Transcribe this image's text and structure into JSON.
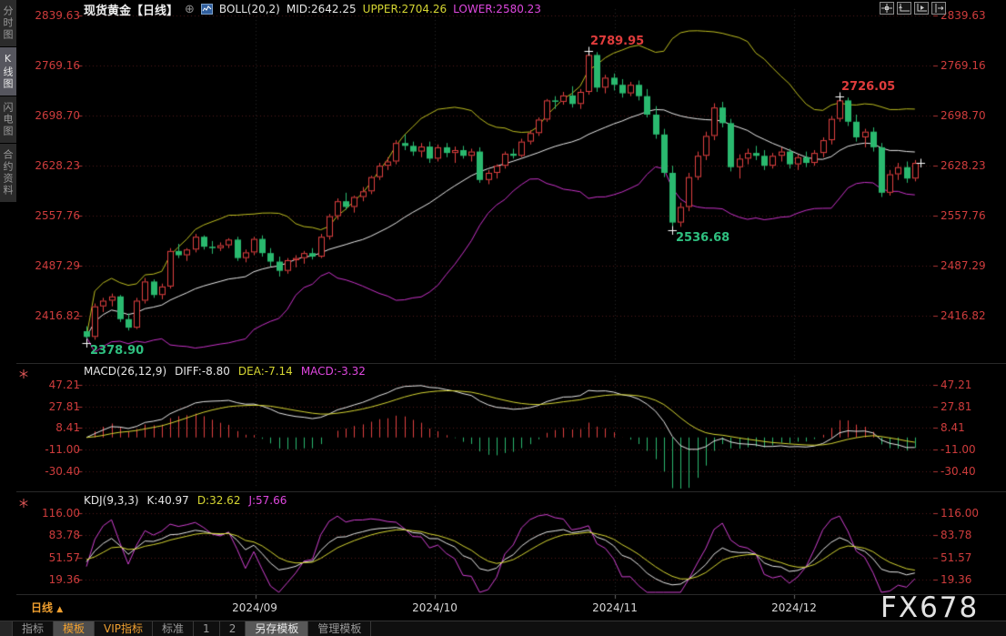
{
  "sidebar": {
    "tabs": [
      {
        "label": "分时图",
        "active": false
      },
      {
        "label": "K线图",
        "active": true
      },
      {
        "label": "闪电图",
        "active": false
      },
      {
        "label": "合约资料",
        "active": false
      }
    ]
  },
  "header": {
    "title": "现货黄金【日线】",
    "boll_label": "BOLL(20,2)",
    "mid": "MID:2642.25",
    "upper": "UPPER:2704.26",
    "lower": "LOWER:2580.23",
    "icons": [
      "crosshair-icon",
      "axis-scale-left-icon",
      "axis-scale-right-icon",
      "axis-shift-right-icon"
    ]
  },
  "macd_panel": {
    "label": "MACD(26,12,9)",
    "diff": "DIFF:-8.80",
    "dea": "DEA:-7.14",
    "macd": "MACD:-3.32"
  },
  "kdj_panel": {
    "label": "KDJ(9,3,3)",
    "k": "K:40.97",
    "d": "D:32.62",
    "j": "J:57.66"
  },
  "footer": {
    "period": "日线",
    "period_arrow": "▲"
  },
  "toolbar": {
    "items": [
      {
        "label": "指标",
        "active": false
      },
      {
        "label": "模板",
        "active": true
      },
      {
        "label": "VIP指标",
        "active": false
      },
      {
        "label": "标准",
        "active": false
      },
      {
        "label": "1",
        "active": false
      },
      {
        "label": "2",
        "active": false
      },
      {
        "label": "另存模板",
        "active": true
      },
      {
        "label": "管理模板",
        "active": false
      }
    ]
  },
  "watermark": "FX678",
  "colors": {
    "up": "#e24040",
    "down": "#2ab96f",
    "axis_label": "#cf3c3c",
    "boll_upper": "#bebe20",
    "boll_mid": "#eaeaea",
    "boll_lower": "#c832c8",
    "yellow_line": "#d6d632",
    "magenta_line": "#d040d0",
    "white_line": "#e8e8e8",
    "grid_h": "rgba(180,60,60,0.45)",
    "grid_v": "rgba(160,160,160,0.25)"
  },
  "chart_data": [
    {
      "type": "candlestick",
      "title": "现货黄金 日线 (spot gold daily)",
      "x_axis": {
        "labels": [
          "2024/09",
          "2024/10",
          "2024/11",
          "2024/12"
        ]
      },
      "y_ticks": [
        "2839.63",
        "2769.16",
        "2698.70",
        "2628.23",
        "2557.76",
        "2487.29",
        "2416.82"
      ],
      "boll": {
        "period": 20,
        "mult": 2,
        "mid": 2642.25,
        "upper": 2704.26,
        "lower": 2580.23
      },
      "annotations": [
        {
          "text": "2789.95",
          "index": 60,
          "at": "high",
          "color": "#e03c3c"
        },
        {
          "text": "2726.05",
          "index": 90,
          "at": "high",
          "color": "#e03c3c"
        },
        {
          "text": "2536.68",
          "index": 70,
          "at": "low",
          "color": "#2fc080"
        },
        {
          "text": "2378.90",
          "index": 0,
          "at": "low",
          "color": "#2fc080"
        }
      ],
      "candles": [
        [
          2395,
          2402,
          2378.9,
          2387
        ],
        [
          2387,
          2434,
          2383,
          2430
        ],
        [
          2430,
          2442,
          2422,
          2438
        ],
        [
          2438,
          2448,
          2430,
          2444
        ],
        [
          2444,
          2446,
          2408,
          2412
        ],
        [
          2412,
          2420,
          2396,
          2400
        ],
        [
          2400,
          2442,
          2398,
          2438
        ],
        [
          2438,
          2470,
          2434,
          2465
        ],
        [
          2465,
          2468,
          2442,
          2446
        ],
        [
          2446,
          2462,
          2440,
          2458
        ],
        [
          2458,
          2512,
          2455,
          2508
        ],
        [
          2508,
          2518,
          2498,
          2502
        ],
        [
          2502,
          2512,
          2494,
          2510
        ],
        [
          2510,
          2532,
          2506,
          2528
        ],
        [
          2528,
          2530,
          2510,
          2514
        ],
        [
          2514,
          2522,
          2504,
          2512
        ],
        [
          2512,
          2520,
          2508,
          2516
        ],
        [
          2516,
          2526,
          2512,
          2524
        ],
        [
          2524,
          2528,
          2494,
          2498
        ],
        [
          2498,
          2510,
          2492,
          2506
        ],
        [
          2506,
          2528,
          2502,
          2525
        ],
        [
          2525,
          2530,
          2500,
          2505
        ],
        [
          2505,
          2512,
          2486,
          2493
        ],
        [
          2493,
          2500,
          2472,
          2480
        ],
        [
          2480,
          2498,
          2476,
          2495
        ],
        [
          2495,
          2502,
          2485,
          2498
        ],
        [
          2498,
          2508,
          2490,
          2505
        ],
        [
          2505,
          2512,
          2496,
          2500
        ],
        [
          2500,
          2532,
          2498,
          2528
        ],
        [
          2528,
          2560,
          2524,
          2557
        ],
        [
          2557,
          2582,
          2552,
          2578
        ],
        [
          2578,
          2590,
          2566,
          2570
        ],
        [
          2570,
          2586,
          2562,
          2584
        ],
        [
          2584,
          2598,
          2578,
          2592
        ],
        [
          2592,
          2614,
          2588,
          2612
        ],
        [
          2612,
          2632,
          2608,
          2628
        ],
        [
          2628,
          2640,
          2622,
          2634
        ],
        [
          2634,
          2664,
          2630,
          2660
        ],
        [
          2660,
          2672,
          2650,
          2656
        ],
        [
          2656,
          2662,
          2642,
          2648
        ],
        [
          2648,
          2660,
          2640,
          2655
        ],
        [
          2655,
          2662,
          2632,
          2638
        ],
        [
          2638,
          2658,
          2634,
          2654
        ],
        [
          2654,
          2660,
          2640,
          2646
        ],
        [
          2646,
          2655,
          2632,
          2650
        ],
        [
          2650,
          2656,
          2638,
          2642
        ],
        [
          2642,
          2652,
          2634,
          2648
        ],
        [
          2648,
          2654,
          2604,
          2608
        ],
        [
          2608,
          2622,
          2602,
          2618
        ],
        [
          2618,
          2630,
          2610,
          2628
        ],
        [
          2628,
          2648,
          2624,
          2645
        ],
        [
          2645,
          2652,
          2638,
          2642
        ],
        [
          2642,
          2666,
          2640,
          2662
        ],
        [
          2662,
          2678,
          2658,
          2674
        ],
        [
          2674,
          2696,
          2670,
          2693
        ],
        [
          2693,
          2722,
          2690,
          2720
        ],
        [
          2720,
          2726,
          2708,
          2718
        ],
        [
          2718,
          2732,
          2714,
          2727
        ],
        [
          2727,
          2740,
          2710,
          2715
        ],
        [
          2715,
          2736,
          2708,
          2732
        ],
        [
          2732,
          2789.95,
          2728,
          2784
        ],
        [
          2784,
          2788,
          2732,
          2738
        ],
        [
          2738,
          2756,
          2730,
          2752
        ],
        [
          2752,
          2758,
          2734,
          2742
        ],
        [
          2742,
          2750,
          2724,
          2730
        ],
        [
          2730,
          2746,
          2726,
          2742
        ],
        [
          2742,
          2748,
          2720,
          2726
        ],
        [
          2726,
          2736,
          2696,
          2700
        ],
        [
          2700,
          2712,
          2666,
          2672
        ],
        [
          2672,
          2680,
          2612,
          2618
        ],
        [
          2618,
          2628,
          2536.68,
          2548
        ],
        [
          2548,
          2576,
          2542,
          2570
        ],
        [
          2570,
          2618,
          2564,
          2612
        ],
        [
          2612,
          2648,
          2608,
          2642
        ],
        [
          2642,
          2676,
          2636,
          2670
        ],
        [
          2670,
          2716,
          2664,
          2710
        ],
        [
          2710,
          2718,
          2682,
          2688
        ],
        [
          2688,
          2694,
          2620,
          2626
        ],
        [
          2626,
          2644,
          2610,
          2638
        ],
        [
          2638,
          2652,
          2630,
          2646
        ],
        [
          2646,
          2656,
          2636,
          2642
        ],
        [
          2642,
          2650,
          2622,
          2628
        ],
        [
          2628,
          2646,
          2624,
          2642
        ],
        [
          2642,
          2654,
          2634,
          2648
        ],
        [
          2648,
          2652,
          2624,
          2630
        ],
        [
          2630,
          2644,
          2622,
          2640
        ],
        [
          2640,
          2648,
          2626,
          2632
        ],
        [
          2632,
          2650,
          2628,
          2646
        ],
        [
          2646,
          2668,
          2640,
          2664
        ],
        [
          2664,
          2698,
          2658,
          2694
        ],
        [
          2694,
          2726.05,
          2690,
          2720
        ],
        [
          2720,
          2724,
          2684,
          2690
        ],
        [
          2690,
          2700,
          2662,
          2668
        ],
        [
          2668,
          2680,
          2654,
          2676
        ],
        [
          2676,
          2682,
          2648,
          2654
        ],
        [
          2654,
          2660,
          2584,
          2590
        ],
        [
          2590,
          2622,
          2586,
          2616
        ],
        [
          2616,
          2632,
          2608,
          2626
        ],
        [
          2626,
          2634,
          2604,
          2610
        ],
        [
          2610,
          2636,
          2606,
          2632
        ]
      ]
    },
    {
      "type": "macd",
      "params": "26,12,9",
      "diff": -8.8,
      "dea": -7.14,
      "macd": -3.32,
      "y_ticks": [
        "47.21",
        "27.81",
        "8.41",
        "-11.00",
        "-30.40"
      ]
    },
    {
      "type": "kdj",
      "params": "9,3,3",
      "k": 40.97,
      "d": 32.62,
      "j": 57.66,
      "y_ticks": [
        "116.00",
        "83.78",
        "51.57",
        "19.36"
      ]
    }
  ]
}
